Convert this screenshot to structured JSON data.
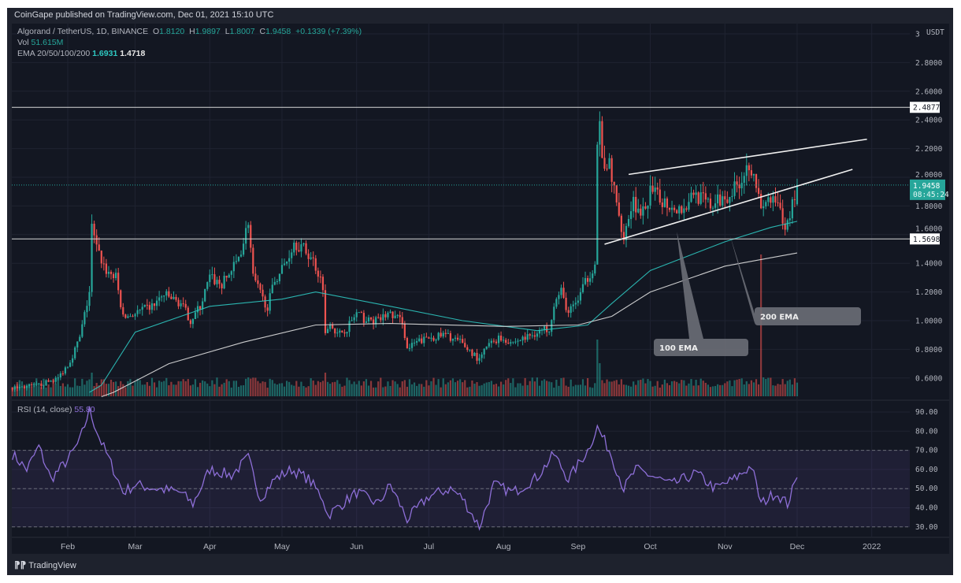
{
  "header": {
    "published": "CoinGape published on TradingView.com, Dec 01, 2021 15:10 UTC",
    "symbol": "Algorand / TetherUS, 1D, BINANCE",
    "open_label": "O",
    "open": "1.8120",
    "high_label": "H",
    "high": "1.9897",
    "low_label": "L",
    "low": "1.8007",
    "close_label": "C",
    "close": "1.9458",
    "change": "+0.1339 (+7.39%)",
    "vol_label": "Vol",
    "vol": "51.615M",
    "ema_label": "EMA 20/50/100/200",
    "ema100": "1.6931",
    "ema200": "1.4718"
  },
  "rsi_header": {
    "label": "RSI (14, close)",
    "value": "55.80"
  },
  "footer": {
    "logo": "TV",
    "brand": "TradingView"
  },
  "colors": {
    "background": "#131722",
    "up": "#26a69a",
    "down": "#ef5350",
    "ema100": "#2ec7c0",
    "ema200": "#e0e0e0",
    "rsi": "#8e6fd8",
    "rsi_band": "#7e57c2"
  },
  "chart_data": [
    {
      "type": "candlestick",
      "title": "Algorand / TetherUS, 1D, BINANCE",
      "currency": "USDT",
      "ylim": [
        0.5,
        3.05
      ],
      "y_ticks": [
        "3",
        "2.8000",
        "2.6000",
        "2.4000",
        "2.2000",
        "2.0000",
        "1.8000",
        "1.6000",
        "1.4000",
        "1.2000",
        "1.0000",
        "0.8000",
        "0.6000"
      ],
      "y_tick_values": [
        3,
        2.8,
        2.6,
        2.4,
        2.2,
        2.0,
        1.8,
        1.6,
        1.4,
        1.2,
        1.0,
        0.8,
        0.6
      ],
      "x_ticks": [
        "Feb",
        "Mar",
        "Apr",
        "May",
        "Jun",
        "Jul",
        "Aug",
        "Sep",
        "Oct",
        "Nov",
        "Dec",
        "2022"
      ],
      "x_tick_dates": [
        "2021-02-01",
        "2021-03-01",
        "2021-04-01",
        "2021-05-01",
        "2021-06-01",
        "2021-07-01",
        "2021-08-01",
        "2021-09-01",
        "2021-10-01",
        "2021-11-01",
        "2021-12-01",
        "2022-01-01"
      ],
      "xlim": [
        "2021-01-09",
        "2022-01-05"
      ],
      "grid": true,
      "close_path": [
        [
          "2021-01-09",
          0.53
        ],
        [
          "2021-01-20",
          0.55
        ],
        [
          "2021-01-28",
          0.6
        ],
        [
          "2021-02-02",
          0.72
        ],
        [
          "2021-02-06",
          0.88
        ],
        [
          "2021-02-10",
          1.2
        ],
        [
          "2021-02-11",
          1.65
        ],
        [
          "2021-02-13",
          1.5
        ],
        [
          "2021-02-17",
          1.35
        ],
        [
          "2021-02-21",
          1.3
        ],
        [
          "2021-02-24",
          1.02
        ],
        [
          "2021-03-01",
          1.05
        ],
        [
          "2021-03-08",
          1.1
        ],
        [
          "2021-03-13",
          1.18
        ],
        [
          "2021-03-20",
          1.12
        ],
        [
          "2021-03-24",
          1.0
        ],
        [
          "2021-03-28",
          1.1
        ],
        [
          "2021-04-01",
          1.3
        ],
        [
          "2021-04-06",
          1.25
        ],
        [
          "2021-04-12",
          1.4
        ],
        [
          "2021-04-15",
          1.55
        ],
        [
          "2021-04-17",
          1.7
        ],
        [
          "2021-04-19",
          1.3
        ],
        [
          "2021-04-23",
          1.15
        ],
        [
          "2021-04-25",
          1.1
        ],
        [
          "2021-04-28",
          1.28
        ],
        [
          "2021-05-03",
          1.42
        ],
        [
          "2021-05-06",
          1.55
        ],
        [
          "2021-05-10",
          1.5
        ],
        [
          "2021-05-14",
          1.42
        ],
        [
          "2021-05-18",
          1.25
        ],
        [
          "2021-05-19",
          0.9
        ],
        [
          "2021-05-21",
          1.0
        ],
        [
          "2021-05-24",
          0.9
        ],
        [
          "2021-05-28",
          0.95
        ],
        [
          "2021-06-01",
          1.05
        ],
        [
          "2021-06-05",
          1.0
        ],
        [
          "2021-06-10",
          1.0
        ],
        [
          "2021-06-14",
          1.05
        ],
        [
          "2021-06-20",
          1.0
        ],
        [
          "2021-06-22",
          0.8
        ],
        [
          "2021-06-26",
          0.85
        ],
        [
          "2021-07-01",
          0.88
        ],
        [
          "2021-07-08",
          0.9
        ],
        [
          "2021-07-14",
          0.85
        ],
        [
          "2021-07-20",
          0.76
        ],
        [
          "2021-07-22",
          0.72
        ],
        [
          "2021-07-25",
          0.82
        ],
        [
          "2021-07-30",
          0.88
        ],
        [
          "2021-08-05",
          0.85
        ],
        [
          "2021-08-10",
          0.88
        ],
        [
          "2021-08-15",
          0.92
        ],
        [
          "2021-08-20",
          0.95
        ],
        [
          "2021-08-22",
          1.12
        ],
        [
          "2021-08-25",
          1.2
        ],
        [
          "2021-08-28",
          1.05
        ],
        [
          "2021-09-01",
          1.15
        ],
        [
          "2021-09-05",
          1.3
        ],
        [
          "2021-09-08",
          1.4
        ],
        [
          "2021-09-09",
          2.2
        ],
        [
          "2021-09-10",
          2.35
        ],
        [
          "2021-09-12",
          2.0
        ],
        [
          "2021-09-14",
          2.1
        ],
        [
          "2021-09-17",
          1.8
        ],
        [
          "2021-09-20",
          1.6
        ],
        [
          "2021-09-24",
          1.85
        ],
        [
          "2021-09-27",
          1.7
        ],
        [
          "2021-10-01",
          1.9
        ],
        [
          "2021-10-05",
          1.85
        ],
        [
          "2021-10-10",
          1.8
        ],
        [
          "2021-10-15",
          1.78
        ],
        [
          "2021-10-19",
          1.9
        ],
        [
          "2021-10-22",
          1.85
        ],
        [
          "2021-10-26",
          1.8
        ],
        [
          "2021-10-31",
          1.85
        ],
        [
          "2021-11-04",
          1.9
        ],
        [
          "2021-11-08",
          2.0
        ],
        [
          "2021-11-11",
          2.1
        ],
        [
          "2021-11-13",
          2.05
        ],
        [
          "2021-11-16",
          1.75
        ],
        [
          "2021-11-19",
          1.85
        ],
        [
          "2021-11-23",
          1.8
        ],
        [
          "2021-11-26",
          1.62
        ],
        [
          "2021-11-28",
          1.75
        ],
        [
          "2021-12-01",
          1.9458
        ]
      ],
      "series": [
        {
          "name": "100 EMA",
          "points": [
            [
              "2021-02-10",
              0.5
            ],
            [
              "2021-02-15",
              0.55
            ],
            [
              "2021-03-01",
              0.92
            ],
            [
              "2021-04-01",
              1.1
            ],
            [
              "2021-05-01",
              1.15
            ],
            [
              "2021-05-15",
              1.2
            ],
            [
              "2021-06-15",
              1.1
            ],
            [
              "2021-07-15",
              1.0
            ],
            [
              "2021-08-15",
              0.93
            ],
            [
              "2021-09-05",
              0.97
            ],
            [
              "2021-09-15",
              1.12
            ],
            [
              "2021-10-01",
              1.35
            ],
            [
              "2021-11-01",
              1.55
            ],
            [
              "2021-11-20",
              1.65
            ],
            [
              "2021-12-01",
              1.6931
            ]
          ]
        },
        {
          "name": "200 EMA",
          "points": [
            [
              "2021-02-15",
              0.47
            ],
            [
              "2021-02-20",
              0.5
            ],
            [
              "2021-03-15",
              0.7
            ],
            [
              "2021-04-15",
              0.85
            ],
            [
              "2021-05-15",
              0.97
            ],
            [
              "2021-06-15",
              0.98
            ],
            [
              "2021-08-01",
              0.96
            ],
            [
              "2021-09-01",
              0.97
            ],
            [
              "2021-09-15",
              1.03
            ],
            [
              "2021-10-01",
              1.2
            ],
            [
              "2021-11-01",
              1.38
            ],
            [
              "2021-12-01",
              1.4718
            ]
          ]
        }
      ],
      "horizontal_levels": [
        {
          "value": 2.4877,
          "label": "2.4877"
        },
        {
          "value": 1.5698,
          "label": "1.5698"
        }
      ],
      "last_price": {
        "value": 1.9458,
        "label": "1.9458",
        "countdown": "08:45:24"
      },
      "trendlines": [
        {
          "from": [
            "2021-09-22",
            2.02
          ],
          "to": [
            "2021-12-30",
            2.265
          ]
        },
        {
          "from": [
            "2021-09-12",
            1.533
          ],
          "to": [
            "2021-12-24",
            2.055
          ]
        }
      ],
      "annotations": [
        {
          "text": "100 EMA",
          "points_to": [
            "2021-10-12",
            1.62
          ]
        },
        {
          "text": "200 EMA",
          "points_to": [
            "2021-11-03",
            1.6
          ]
        }
      ],
      "volume_relative": [
        [
          "2021-01-09",
          0.2
        ],
        [
          "2021-02-11",
          0.5
        ],
        [
          "2021-04-17",
          0.4
        ],
        [
          "2021-05-19",
          0.5
        ],
        [
          "2021-08-23",
          0.35
        ],
        [
          "2021-09-09",
          1.2
        ],
        [
          "2021-09-10",
          0.7
        ],
        [
          "2021-11-16",
          3.0
        ],
        [
          "2021-11-17",
          0.4
        ],
        [
          "2021-12-01",
          0.25
        ]
      ]
    },
    {
      "type": "line",
      "title": "RSI (14, close)",
      "ylim": [
        25,
        95
      ],
      "y_ticks": [
        "90.00",
        "80.00",
        "70.00",
        "60.00",
        "50.00",
        "40.00",
        "30.00"
      ],
      "y_tick_values": [
        90,
        80,
        70,
        60,
        50,
        40,
        30
      ],
      "band": [
        30,
        70
      ],
      "midline": 50,
      "points": [
        [
          "2021-01-09",
          68
        ],
        [
          "2021-01-15",
          60
        ],
        [
          "2021-01-20",
          72
        ],
        [
          "2021-01-25",
          55
        ],
        [
          "2021-02-01",
          65
        ],
        [
          "2021-02-06",
          75
        ],
        [
          "2021-02-10",
          91
        ],
        [
          "2021-02-14",
          77
        ],
        [
          "2021-02-20",
          60
        ],
        [
          "2021-02-24",
          48
        ],
        [
          "2021-03-01",
          52
        ],
        [
          "2021-03-10",
          50
        ],
        [
          "2021-03-20",
          48
        ],
        [
          "2021-03-25",
          42
        ],
        [
          "2021-04-01",
          60
        ],
        [
          "2021-04-10",
          57
        ],
        [
          "2021-04-17",
          66
        ],
        [
          "2021-04-22",
          45
        ],
        [
          "2021-04-28",
          55
        ],
        [
          "2021-05-05",
          60
        ],
        [
          "2021-05-12",
          55
        ],
        [
          "2021-05-18",
          45
        ],
        [
          "2021-05-20",
          36
        ],
        [
          "2021-06-01",
          48
        ],
        [
          "2021-06-10",
          42
        ],
        [
          "2021-06-15",
          52
        ],
        [
          "2021-06-22",
          34
        ],
        [
          "2021-07-01",
          46
        ],
        [
          "2021-07-10",
          50
        ],
        [
          "2021-07-15",
          45
        ],
        [
          "2021-07-22",
          30
        ],
        [
          "2021-07-28",
          52
        ],
        [
          "2021-08-05",
          48
        ],
        [
          "2021-08-15",
          56
        ],
        [
          "2021-08-22",
          68
        ],
        [
          "2021-08-28",
          55
        ],
        [
          "2021-09-05",
          70
        ],
        [
          "2021-09-09",
          82
        ],
        [
          "2021-09-14",
          70
        ],
        [
          "2021-09-20",
          50
        ],
        [
          "2021-09-25",
          60
        ],
        [
          "2021-10-01",
          57
        ],
        [
          "2021-10-10",
          52
        ],
        [
          "2021-10-20",
          58
        ],
        [
          "2021-10-28",
          50
        ],
        [
          "2021-11-05",
          55
        ],
        [
          "2021-11-12",
          62
        ],
        [
          "2021-11-16",
          42
        ],
        [
          "2021-11-22",
          48
        ],
        [
          "2021-11-27",
          42
        ],
        [
          "2021-12-01",
          55.8
        ]
      ]
    }
  ]
}
